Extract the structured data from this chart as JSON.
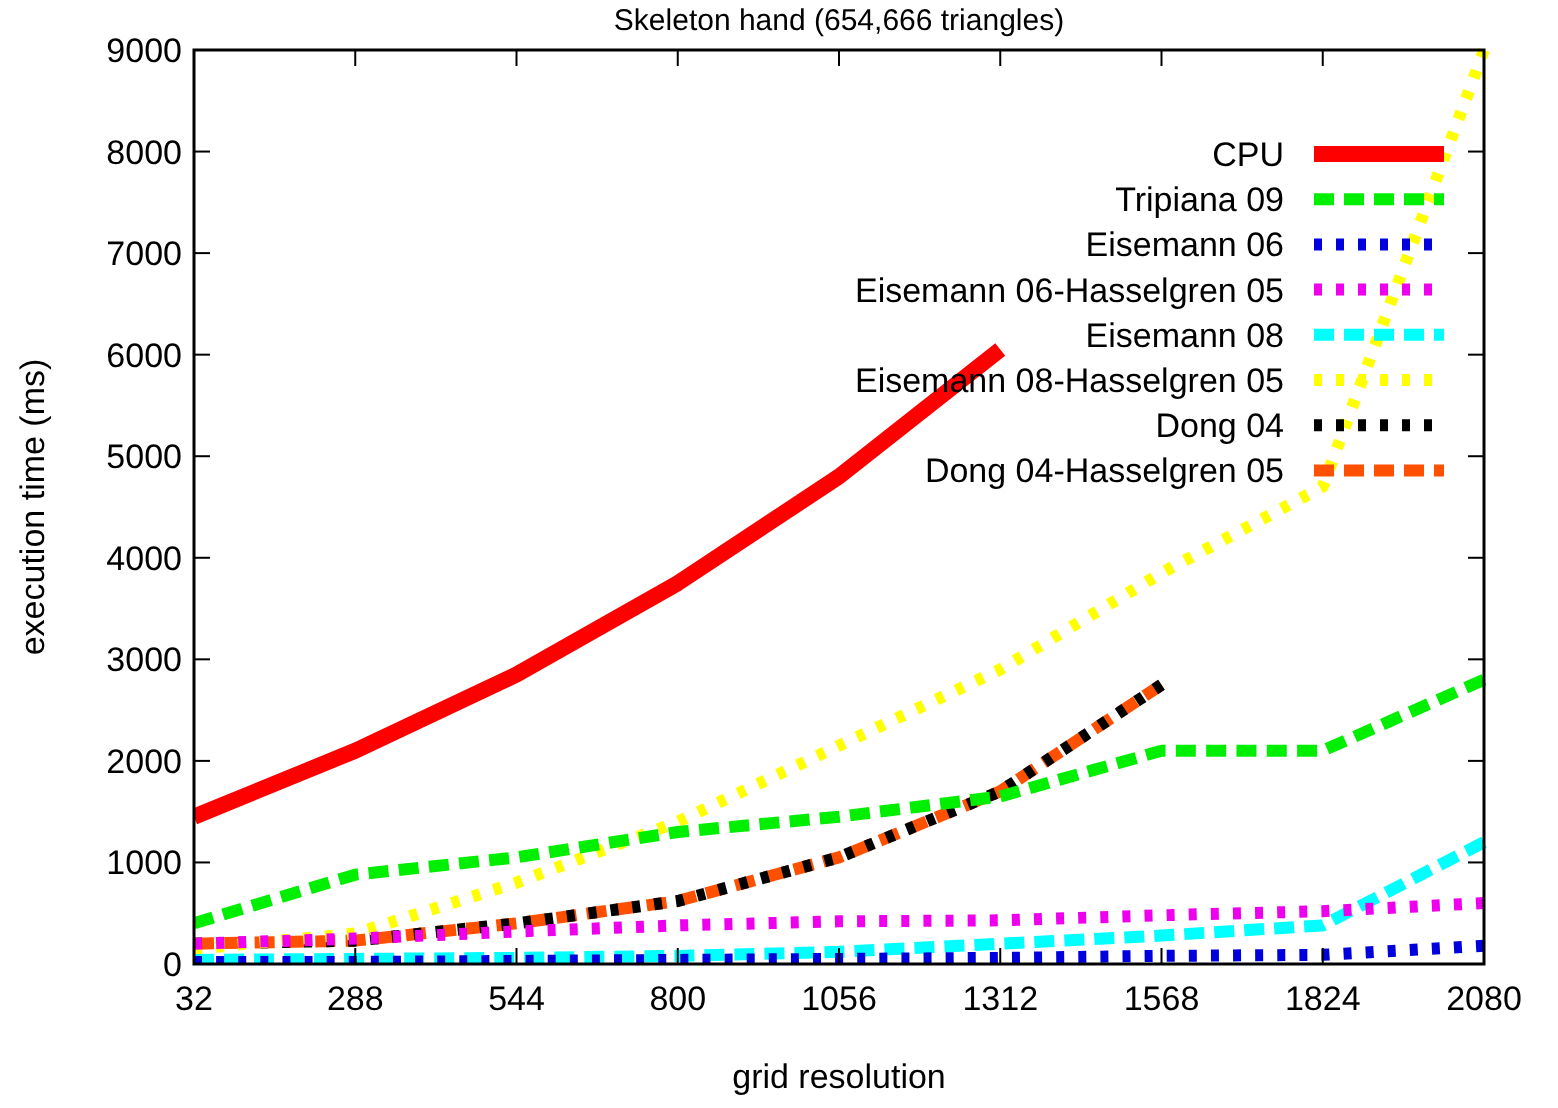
{
  "chart_data": {
    "type": "line",
    "title": "Skeleton hand (654,666 triangles)",
    "xlabel": "grid resolution",
    "ylabel": "execution time (ms)",
    "x": [
      32,
      288,
      544,
      800,
      1056,
      1312,
      1568,
      1824,
      2080
    ],
    "xlim": [
      32,
      2080
    ],
    "xticks": [
      32,
      288,
      544,
      800,
      1056,
      1312,
      1568,
      1824,
      2080
    ],
    "ylim": [
      0,
      9000
    ],
    "yticks": [
      0,
      1000,
      2000,
      3000,
      4000,
      5000,
      6000,
      7000,
      8000,
      9000
    ],
    "grid": false,
    "legend": "top right",
    "marker": "none",
    "series": [
      {
        "name": "CPU",
        "color": "#ff0000",
        "line_style": "solid",
        "values": [
          1450,
          2100,
          2850,
          3750,
          4800,
          6050,
          null,
          null,
          null
        ]
      },
      {
        "name": "Tripiana 09",
        "color": "#00ee00",
        "line_style": "dashed",
        "values": [
          400,
          880,
          1050,
          1300,
          1450,
          1650,
          2100,
          2100,
          2800
        ]
      },
      {
        "name": "Eisemann 06",
        "color": "#0000dd",
        "line_style": "dotted",
        "values": [
          20,
          20,
          30,
          40,
          50,
          60,
          80,
          90,
          180
        ]
      },
      {
        "name": "Eisemann 06-Hasselgren 05",
        "color": "#ee00ee",
        "line_style": "dotted",
        "values": [
          200,
          250,
          320,
          380,
          420,
          430,
          480,
          520,
          600
        ]
      },
      {
        "name": "Eisemann 08",
        "color": "#00ffff",
        "line_style": "dashed",
        "values": [
          40,
          50,
          60,
          80,
          120,
          200,
          280,
          380,
          1200
        ]
      },
      {
        "name": "Eisemann 08-Hasselgren 05",
        "color": "#ffff00",
        "line_style": "dotted",
        "values": [
          150,
          300,
          800,
          1400,
          2150,
          2900,
          3850,
          4700,
          9000
        ]
      },
      {
        "name": "Dong 04",
        "color": "#000000",
        "line_style": "dotted",
        "values": [
          200,
          230,
          400,
          620,
          1050,
          1700,
          2750,
          null,
          null
        ]
      },
      {
        "name": "Dong 04-Hasselgren 05",
        "color": "#ff5000",
        "line_style": "dashed",
        "values": [
          200,
          230,
          400,
          620,
          1050,
          1700,
          2750,
          null,
          null
        ]
      }
    ]
  }
}
